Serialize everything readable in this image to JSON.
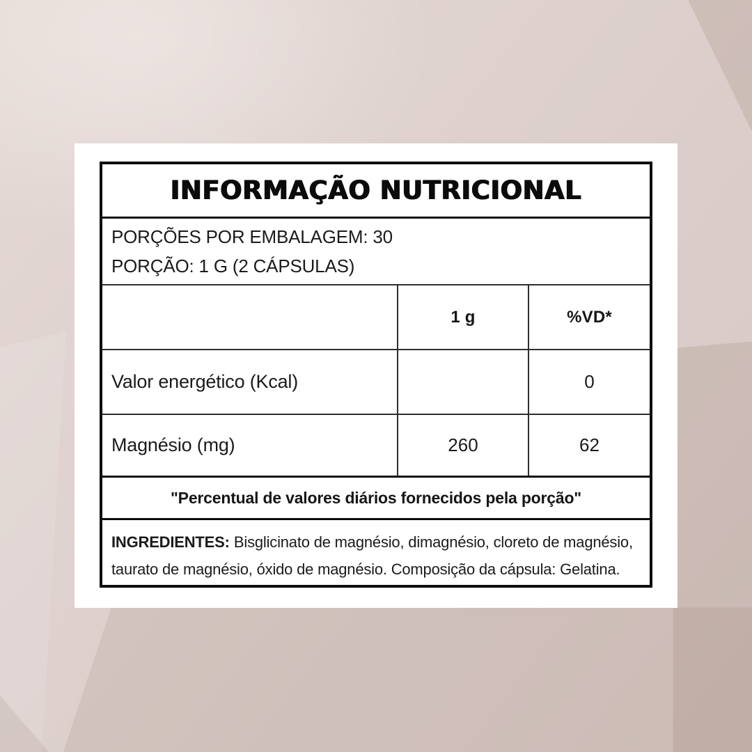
{
  "panel": {
    "title": "INFORMAÇÃO NUTRICIONAL",
    "servings": {
      "per_package": "PORÇÕES POR EMBALAGEM: 30",
      "serving_size": "PORÇÃO: 1 G (2 CÁPSULAS)"
    },
    "columns": {
      "amount_header": "1 g",
      "dv_header": "%VD*"
    },
    "nutrients": [
      {
        "name": "Valor energético (Kcal)",
        "amount": "",
        "dv": "0"
      },
      {
        "name": "Magnésio (mg)",
        "amount": "260",
        "dv": "62"
      }
    ],
    "footnote": "\"Percentual de valores diários fornecidos pela porção\"",
    "ingredients": {
      "label": "INGREDIENTES:",
      "text": "Bisglicinato de magnésio, dimagnésio, cloreto de magnésio, taurato de magnésio, óxido de magnésio. Composição da cápsula: Gelatina."
    }
  },
  "colors": {
    "background_base": "#ddd0cd",
    "card": "#ffffff",
    "text": "#161616",
    "border": "#0d0d0d"
  }
}
